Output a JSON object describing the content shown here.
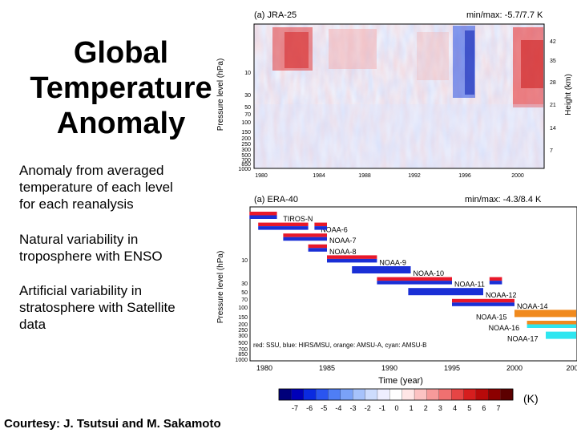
{
  "slide": {
    "title_lines": [
      "Global",
      "Temperature",
      "Anomaly"
    ],
    "bullets": [
      [
        "Anomaly from averaged",
        "temperature of each level",
        "for each reanalysis"
      ],
      [
        "Natural variability in",
        "troposphere with ENSO"
      ],
      [
        "Artificial variability in",
        "stratosphere  with Satellite",
        "data"
      ]
    ],
    "courtesy": "Courtesy: J. Tsutsui and M. Sakamoto"
  },
  "panel_top": {
    "label": "(a) JRA-25",
    "minmax": "min/max: -5.7/7.7 K",
    "y_axis_label": "Pressure level (hPa)",
    "y_ticks": [
      "10",
      "30",
      "50",
      "70",
      "100",
      "150",
      "200",
      "250",
      "300",
      "500",
      "700",
      "850",
      "1000"
    ],
    "right_axis_label": "Height (km)",
    "right_ticks": [
      "42",
      "35",
      "28",
      "21",
      "14",
      "7"
    ],
    "x_ticks": [
      "1980",
      "1984",
      "1988",
      "1992",
      "1996",
      "2000"
    ]
  },
  "panel_bottom": {
    "label": "(a) ERA-40",
    "minmax": "min/max: -4.3/8.4 K",
    "y_axis_label": "Pressure level (hPa)",
    "y_ticks": [
      "10",
      "30",
      "50",
      "70",
      "100",
      "150",
      "200",
      "250",
      "300",
      "500",
      "700",
      "850",
      "1000"
    ],
    "x_ticks": [
      "1980",
      "1985",
      "1990",
      "1995",
      "2000",
      "200"
    ],
    "x_axis_label": "Time (year)",
    "legend_note": "red: SSU, blue: HIRS/MSU, orange: AMSU-A, cyan: AMSU-B",
    "satellites": [
      {
        "name": "TIROS-N",
        "start": 1978.8,
        "end": 1981.0,
        "instruments": [
          "ssu",
          "hirs"
        ]
      },
      {
        "name": "NOAA-6",
        "start": 1979.5,
        "end": 1983.5,
        "instruments": [
          "ssu",
          "hirs"
        ]
      },
      {
        "name": "NOAA-7",
        "start": 1981.5,
        "end": 1985.0,
        "instruments": [
          "ssu",
          "hirs"
        ]
      },
      {
        "name": "NOAA-8",
        "start": 1983.5,
        "end": 1985.0,
        "instruments": [
          "ssu",
          "hirs"
        ]
      },
      {
        "name": "NOAA-9",
        "start": 1985.0,
        "end": 1989.0,
        "instruments": [
          "ssu",
          "hirs"
        ]
      },
      {
        "name": "NOAA-10",
        "start": 1987.0,
        "end": 1991.7,
        "instruments": [
          "hirs"
        ]
      },
      {
        "name": "NOAA-11",
        "start": 1989.0,
        "end": 1995.0,
        "instruments": [
          "ssu",
          "hirs"
        ]
      },
      {
        "name": "NOAA-12",
        "start": 1991.5,
        "end": 1997.5,
        "instruments": [
          "hirs"
        ]
      },
      {
        "name": "NOAA-14",
        "start": 1995.0,
        "end": 2000.0,
        "instruments": [
          "ssu",
          "hirs"
        ]
      },
      {
        "name": "NOAA-15",
        "start": 2000.0,
        "end": 2006.0,
        "instruments": [
          "amsua"
        ]
      },
      {
        "name": "NOAA-16",
        "start": 2001.0,
        "end": 2006.0,
        "instruments": [
          "amsua",
          "amsub"
        ]
      },
      {
        "name": "NOAA-17",
        "start": 2002.5,
        "end": 2006.0,
        "instruments": [
          "amsub"
        ]
      }
    ],
    "extra_bars": [
      {
        "start": 1984.0,
        "end": 1985.0,
        "row": 1,
        "instruments": [
          "ssu",
          "hirs"
        ]
      },
      {
        "start": 1998.0,
        "end": 1999.0,
        "row": 6,
        "instruments": [
          "ssu",
          "hirs"
        ]
      }
    ],
    "colors": {
      "ssu": "#e8182a",
      "hirs": "#1a2fd6",
      "amsua": "#f08a1e",
      "amsub": "#2ee6f0"
    }
  },
  "colorbar": {
    "ticks": [
      "-7",
      "-6",
      "-5",
      "-4",
      "-3",
      "-2",
      "-1",
      "0",
      "1",
      "2",
      "3",
      "4",
      "5",
      "6",
      "7"
    ],
    "unit": "(K)",
    "colors": [
      "#00007a",
      "#0000b8",
      "#0a2ae0",
      "#2a55f0",
      "#4f7ef5",
      "#7aa2f8",
      "#a6c2fb",
      "#cddcfd",
      "#eeeeff",
      "#ffffff",
      "#ffe6e6",
      "#fcc2c2",
      "#f79a9a",
      "#f07070",
      "#e64545",
      "#d61e1e",
      "#b80a0a",
      "#8c0000",
      "#5c0000"
    ]
  }
}
